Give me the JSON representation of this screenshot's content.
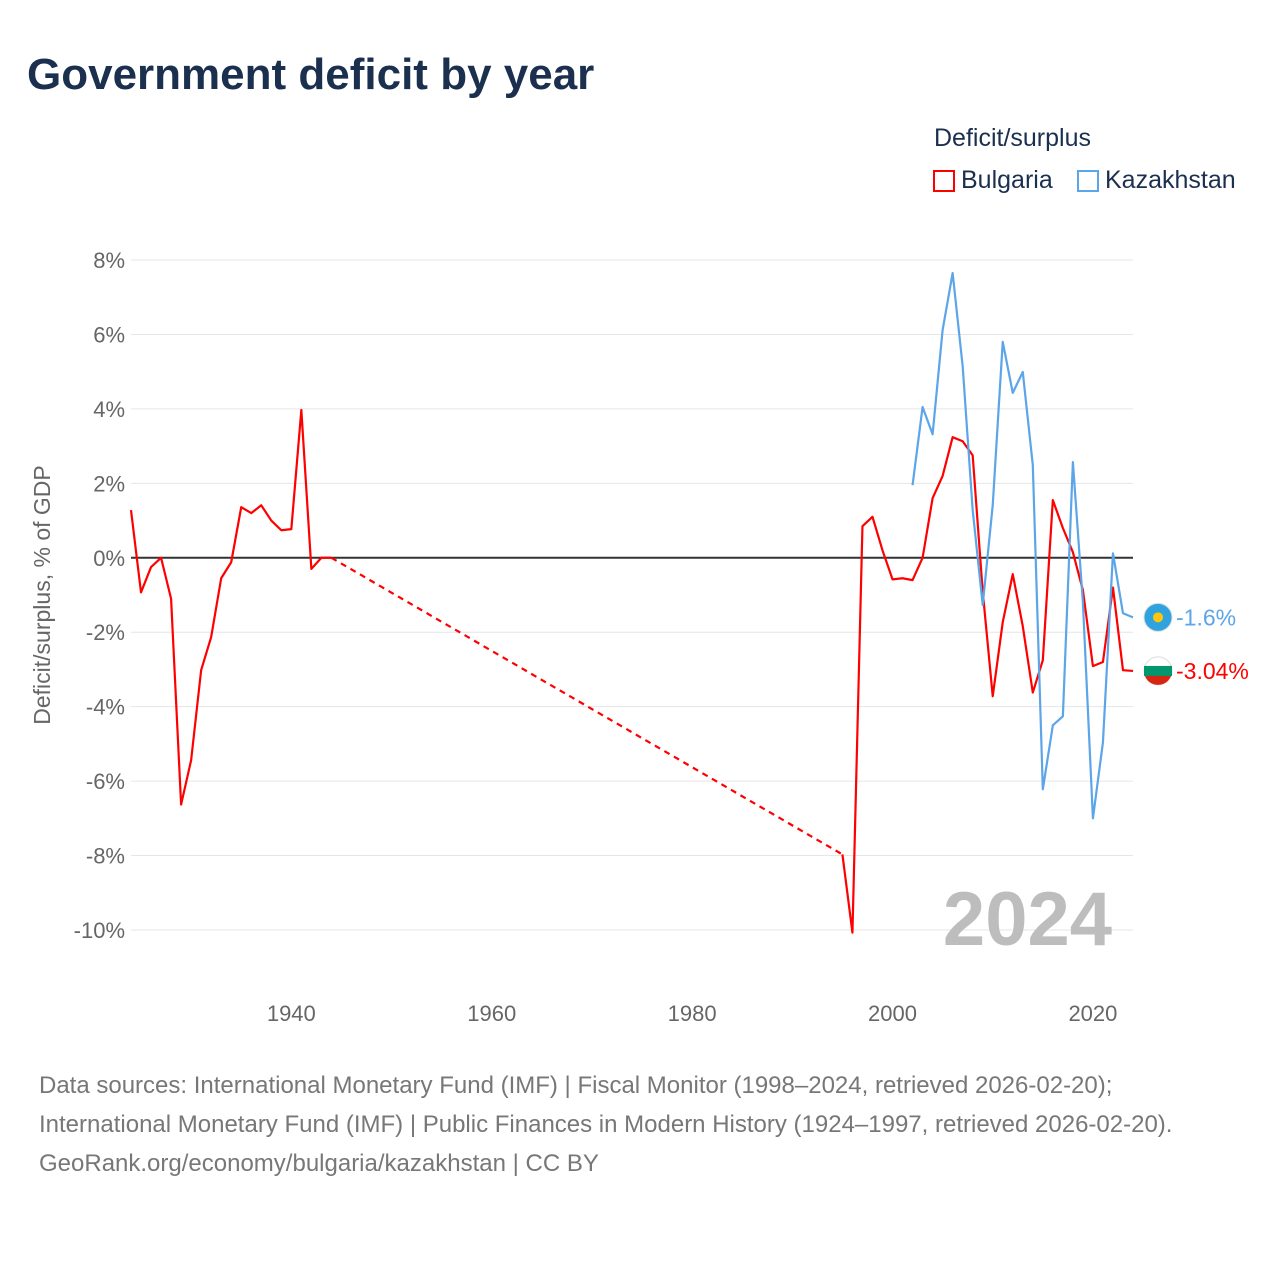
{
  "title": "Government deficit by year",
  "legend": {
    "title": "Deficit/surplus",
    "items": [
      "Bulgaria",
      "Kazakhstan"
    ]
  },
  "colors": {
    "Bulgaria": "#ff0000",
    "Kazakhstan": "#5ba5e8"
  },
  "footer": {
    "sources": "Data sources: International Monetary Fund (IMF) | Fiscal Monitor (1998–2024, retrieved 2026-02-20); International Monetary Fund (IMF) | Public Finances in Modern History (1924–1997, retrieved 2026-02-20).",
    "credit": "GeoRank.org/economy/bulgaria/kazakhstan | CC BY"
  },
  "chart_data": {
    "type": "line",
    "title": "Government deficit by year",
    "ylabel": "Deficit/surplus, % of GDP",
    "xlabel": "",
    "ylim": [
      -10,
      8
    ],
    "xlim": [
      1924,
      2024
    ],
    "yticks": [
      8,
      6,
      4,
      2,
      0,
      -2,
      -4,
      -6,
      -8,
      -10
    ],
    "ytick_labels": [
      "8%",
      "6%",
      "4%",
      "2%",
      "0%",
      "-2%",
      "-4%",
      "-6%",
      "-8%",
      "-10%"
    ],
    "xticks": [
      1940,
      1960,
      1980,
      2000,
      2020
    ],
    "xtick_labels": [
      "1940",
      "1960",
      "1980",
      "2000",
      "2020"
    ],
    "annotation": "2024",
    "end_labels": {
      "Bulgaria": "-3.04%",
      "Kazakhstan": "-1.6%"
    },
    "gap": {
      "series": "Bulgaria",
      "from": 1944,
      "to": 1995,
      "style": "dashed"
    },
    "series": [
      {
        "name": "Bulgaria",
        "points": [
          [
            1924,
            1.28
          ],
          [
            1925,
            -0.93
          ],
          [
            1926,
            -0.25
          ],
          [
            1927,
            0
          ],
          [
            1928,
            -1.1
          ],
          [
            1929,
            -6.63
          ],
          [
            1930,
            -5.44
          ],
          [
            1931,
            -3.02
          ],
          [
            1932,
            -2.13
          ],
          [
            1933,
            -0.55
          ],
          [
            1934,
            -0.12
          ],
          [
            1935,
            1.36
          ],
          [
            1936,
            1.2
          ],
          [
            1937,
            1.41
          ],
          [
            1938,
            1.0
          ],
          [
            1939,
            0.74
          ],
          [
            1940,
            0.77
          ],
          [
            1941,
            3.97
          ],
          [
            1942,
            -0.3
          ],
          [
            1943,
            0
          ],
          [
            1944,
            0
          ],
          [
            1995,
            -7.97
          ],
          [
            1996,
            -10.07
          ],
          [
            1997,
            0.85
          ],
          [
            1998,
            1.1
          ],
          [
            1999,
            0.2
          ],
          [
            2000,
            -0.58
          ],
          [
            2001,
            -0.55
          ],
          [
            2002,
            -0.6
          ],
          [
            2003,
            0
          ],
          [
            2004,
            1.6
          ],
          [
            2005,
            2.2
          ],
          [
            2006,
            3.24
          ],
          [
            2007,
            3.13
          ],
          [
            2008,
            2.75
          ],
          [
            2009,
            -0.9
          ],
          [
            2010,
            -3.72
          ],
          [
            2011,
            -1.73
          ],
          [
            2012,
            -0.44
          ],
          [
            2013,
            -1.84
          ],
          [
            2014,
            -3.62
          ],
          [
            2015,
            -2.75
          ],
          [
            2016,
            1.55
          ],
          [
            2017,
            0.8
          ],
          [
            2018,
            0.15
          ],
          [
            2019,
            -0.87
          ],
          [
            2020,
            -2.91
          ],
          [
            2021,
            -2.8
          ],
          [
            2022,
            -0.8
          ],
          [
            2023,
            -3.02
          ],
          [
            2024,
            -3.04
          ]
        ]
      },
      {
        "name": "Kazakhstan",
        "points": [
          [
            2002,
            1.95
          ],
          [
            2003,
            4.05
          ],
          [
            2004,
            3.32
          ],
          [
            2005,
            6.12
          ],
          [
            2006,
            7.65
          ],
          [
            2007,
            5.15
          ],
          [
            2008,
            1.28
          ],
          [
            2009,
            -1.27
          ],
          [
            2010,
            1.41
          ],
          [
            2011,
            5.8
          ],
          [
            2012,
            4.43
          ],
          [
            2013,
            4.99
          ],
          [
            2014,
            2.49
          ],
          [
            2015,
            -6.22
          ],
          [
            2016,
            -4.5
          ],
          [
            2017,
            -4.26
          ],
          [
            2018,
            2.57
          ],
          [
            2019,
            -1.2
          ],
          [
            2020,
            -7.0
          ],
          [
            2021,
            -4.96
          ],
          [
            2022,
            0.12
          ],
          [
            2023,
            -1.49
          ],
          [
            2024,
            -1.6
          ]
        ]
      }
    ]
  }
}
